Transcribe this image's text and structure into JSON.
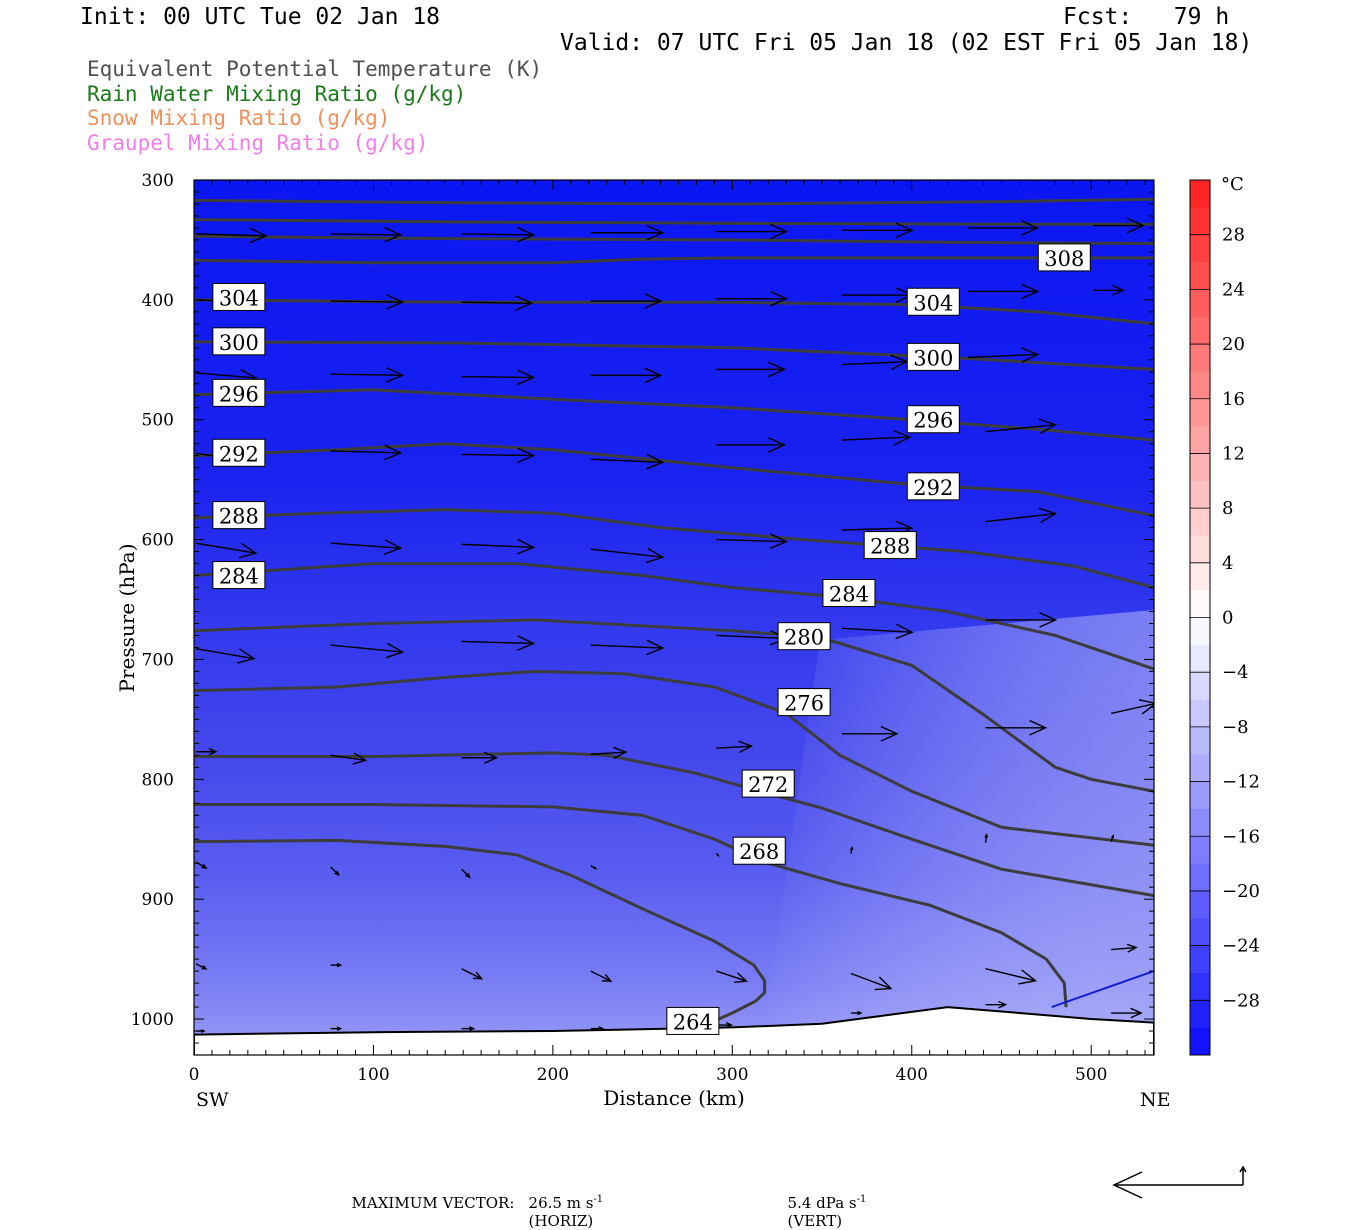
{
  "header": {
    "init": "Init: 00 UTC Tue 02 Jan 18",
    "fcst": "Fcst:   79 h",
    "valid": "Valid: 07 UTC Fri 05 Jan 18 (02 EST Fri 05 Jan 18)"
  },
  "variables": [
    {
      "label": "Equivalent Potential Temperature (K)",
      "color": "#505050"
    },
    {
      "label": "Rain Water Mixing Ratio (g/kg)",
      "color": "#1a7a1a"
    },
    {
      "label": "Snow Mixing Ratio (g/kg)",
      "color": "#f0905a"
    },
    {
      "label": "Graupel Mixing Ratio (g/kg)",
      "color": "#f080e8"
    }
  ],
  "footer": {
    "max_vector_label": "MAXIMUM VECTOR:",
    "horiz_value": "26.5 m s",
    "horiz_exp": "-1",
    "horiz_unit": "(HORIZ)",
    "vert_value": "5.4 dPa s",
    "vert_exp": "-1",
    "vert_unit": "(VERT)"
  },
  "chart_data": {
    "type": "heatmap",
    "xlabel": "Distance (km)",
    "ylabel": "Pressure (hPa)",
    "xlim": [
      0,
      535
    ],
    "ylim": [
      1030,
      300
    ],
    "x_ticks": [
      0,
      100,
      200,
      300,
      400,
      500
    ],
    "y_ticks": [
      300,
      400,
      500,
      600,
      700,
      800,
      900,
      1000
    ],
    "x_endpoint_labels": {
      "left": "SW",
      "right": "NE"
    },
    "colorbar": {
      "unit": "°C",
      "ticks": [
        28,
        24,
        20,
        16,
        12,
        8,
        4,
        0,
        -4,
        -8,
        -12,
        -16,
        -20,
        -24,
        -28
      ],
      "range": [
        -32,
        32
      ]
    },
    "contour_labels": [
      {
        "value": "308",
        "x": 485,
        "p": 365
      },
      {
        "value": "304",
        "x": 25,
        "p": 398
      },
      {
        "value": "304",
        "x": 412,
        "p": 402
      },
      {
        "value": "300",
        "x": 25,
        "p": 435
      },
      {
        "value": "300",
        "x": 412,
        "p": 448
      },
      {
        "value": "296",
        "x": 25,
        "p": 478
      },
      {
        "value": "296",
        "x": 412,
        "p": 500
      },
      {
        "value": "292",
        "x": 25,
        "p": 528
      },
      {
        "value": "292",
        "x": 412,
        "p": 556
      },
      {
        "value": "288",
        "x": 25,
        "p": 580
      },
      {
        "value": "288",
        "x": 388,
        "p": 605
      },
      {
        "value": "284",
        "x": 25,
        "p": 630
      },
      {
        "value": "284",
        "x": 365,
        "p": 645
      },
      {
        "value": "280",
        "x": 340,
        "p": 681
      },
      {
        "value": "276",
        "x": 340,
        "p": 736
      },
      {
        "value": "272",
        "x": 320,
        "p": 804
      },
      {
        "value": "268",
        "x": 315,
        "p": 860
      },
      {
        "value": "264",
        "x": 278,
        "p": 1002
      }
    ],
    "contours": [
      [
        [
          0,
          317
        ],
        [
          150,
          319
        ],
        [
          300,
          320
        ],
        [
          450,
          318
        ],
        [
          535,
          316
        ]
      ],
      [
        [
          0,
          333
        ],
        [
          150,
          335
        ],
        [
          300,
          336
        ],
        [
          450,
          337
        ],
        [
          535,
          337
        ]
      ],
      [
        [
          0,
          347
        ],
        [
          150,
          349
        ],
        [
          300,
          350
        ],
        [
          420,
          352
        ],
        [
          535,
          353
        ]
      ],
      [
        [
          0,
          367
        ],
        [
          100,
          369
        ],
        [
          200,
          369
        ],
        [
          250,
          366
        ],
        [
          300,
          365
        ],
        [
          400,
          365
        ],
        [
          535,
          365
        ]
      ],
      [
        [
          0,
          400
        ],
        [
          150,
          402
        ],
        [
          300,
          402
        ],
        [
          400,
          404
        ],
        [
          470,
          410
        ],
        [
          535,
          420
        ]
      ],
      [
        [
          0,
          435
        ],
        [
          150,
          436
        ],
        [
          300,
          440
        ],
        [
          420,
          448
        ],
        [
          535,
          458
        ]
      ],
      [
        [
          0,
          479
        ],
        [
          100,
          475
        ],
        [
          200,
          483
        ],
        [
          300,
          490
        ],
        [
          400,
          500
        ],
        [
          470,
          508
        ],
        [
          535,
          517
        ]
      ],
      [
        [
          0,
          530
        ],
        [
          80,
          525
        ],
        [
          140,
          520
        ],
        [
          200,
          525
        ],
        [
          300,
          540
        ],
        [
          400,
          554
        ],
        [
          470,
          560
        ],
        [
          535,
          580
        ]
      ],
      [
        [
          0,
          582
        ],
        [
          70,
          578
        ],
        [
          140,
          575
        ],
        [
          200,
          578
        ],
        [
          260,
          590
        ],
        [
          340,
          600
        ],
        [
          430,
          610
        ],
        [
          490,
          622
        ],
        [
          535,
          640
        ]
      ],
      [
        [
          0,
          630
        ],
        [
          100,
          620
        ],
        [
          180,
          620
        ],
        [
          250,
          630
        ],
        [
          300,
          640
        ],
        [
          360,
          648
        ],
        [
          420,
          660
        ],
        [
          480,
          680
        ],
        [
          535,
          708
        ]
      ],
      [
        [
          0,
          676
        ],
        [
          100,
          670
        ],
        [
          190,
          667
        ],
        [
          250,
          672
        ],
        [
          300,
          676
        ],
        [
          350,
          682
        ],
        [
          400,
          705
        ],
        [
          440,
          746
        ],
        [
          480,
          790
        ],
        [
          500,
          800
        ],
        [
          535,
          810
        ]
      ],
      [
        [
          0,
          726
        ],
        [
          80,
          723
        ],
        [
          140,
          715
        ],
        [
          190,
          710
        ],
        [
          240,
          712
        ],
        [
          290,
          723
        ],
        [
          330,
          745
        ],
        [
          360,
          780
        ],
        [
          400,
          810
        ],
        [
          450,
          840
        ],
        [
          535,
          855
        ]
      ],
      [
        [
          0,
          781
        ],
        [
          100,
          781
        ],
        [
          200,
          778
        ],
        [
          230,
          780
        ],
        [
          280,
          795
        ],
        [
          320,
          812
        ],
        [
          350,
          824
        ],
        [
          400,
          850
        ],
        [
          450,
          875
        ],
        [
          535,
          897
        ]
      ],
      [
        [
          0,
          821
        ],
        [
          100,
          821
        ],
        [
          200,
          823
        ],
        [
          250,
          830
        ],
        [
          290,
          850
        ],
        [
          320,
          870
        ],
        [
          360,
          887
        ],
        [
          410,
          905
        ],
        [
          450,
          928
        ],
        [
          475,
          950
        ],
        [
          485,
          970
        ],
        [
          486,
          990
        ]
      ],
      [
        [
          0,
          852
        ],
        [
          80,
          851
        ],
        [
          140,
          856
        ],
        [
          180,
          863
        ],
        [
          210,
          880
        ],
        [
          250,
          908
        ],
        [
          290,
          935
        ],
        [
          312,
          955
        ],
        [
          318,
          968
        ],
        [
          318,
          978
        ],
        [
          313,
          985
        ],
        [
          300,
          995
        ],
        [
          285,
          1005
        ]
      ]
    ],
    "blue_contour": [
      [
        478,
        990
      ],
      [
        535,
        960
      ]
    ],
    "terrain": [
      [
        0,
        1013
      ],
      [
        100,
        1011
      ],
      [
        200,
        1010
      ],
      [
        300,
        1007
      ],
      [
        350,
        1004
      ],
      [
        380,
        998
      ],
      [
        420,
        990
      ],
      [
        460,
        995
      ],
      [
        500,
        1000
      ],
      [
        535,
        1003
      ]
    ],
    "wind_vectors": [
      {
        "x": 0,
        "p": 345,
        "u": 70,
        "v": 2
      },
      {
        "x": 75,
        "p": 345,
        "u": 70,
        "v": 1
      },
      {
        "x": 148,
        "p": 345,
        "u": 72,
        "v": 1
      },
      {
        "x": 220,
        "p": 344,
        "u": 72,
        "v": 0
      },
      {
        "x": 290,
        "p": 343,
        "u": 70,
        "v": 0
      },
      {
        "x": 360,
        "p": 342,
        "u": 70,
        "v": 0
      },
      {
        "x": 430,
        "p": 340,
        "u": 70,
        "v": 0
      },
      {
        "x": 500,
        "p": 338,
        "u": 50,
        "v": 0
      },
      {
        "x": 0,
        "p": 400,
        "u": 65,
        "v": 3
      },
      {
        "x": 75,
        "p": 401,
        "u": 72,
        "v": 1
      },
      {
        "x": 148,
        "p": 402,
        "u": 70,
        "v": 1
      },
      {
        "x": 220,
        "p": 401,
        "u": 70,
        "v": 0
      },
      {
        "x": 290,
        "p": 399,
        "u": 70,
        "v": 0
      },
      {
        "x": 360,
        "p": 396,
        "u": 70,
        "v": 0
      },
      {
        "x": 430,
        "p": 393,
        "u": 70,
        "v": 0
      },
      {
        "x": 500,
        "p": 392,
        "u": 30,
        "v": 0
      },
      {
        "x": 0,
        "p": 461,
        "u": 60,
        "v": 5
      },
      {
        "x": 75,
        "p": 462,
        "u": 72,
        "v": 1
      },
      {
        "x": 148,
        "p": 464,
        "u": 72,
        "v": 1
      },
      {
        "x": 220,
        "p": 463,
        "u": 70,
        "v": 0
      },
      {
        "x": 290,
        "p": 458,
        "u": 68,
        "v": 0
      },
      {
        "x": 360,
        "p": 454,
        "u": 65,
        "v": -3
      },
      {
        "x": 430,
        "p": 448,
        "u": 70,
        "v": -3
      },
      {
        "x": 0,
        "p": 528,
        "u": 55,
        "v": 8
      },
      {
        "x": 75,
        "p": 526,
        "u": 70,
        "v": 2
      },
      {
        "x": 148,
        "p": 529,
        "u": 72,
        "v": 1
      },
      {
        "x": 220,
        "p": 533,
        "u": 72,
        "v": 3
      },
      {
        "x": 290,
        "p": 521,
        "u": 68,
        "v": 0
      },
      {
        "x": 360,
        "p": 517,
        "u": 68,
        "v": -3
      },
      {
        "x": 440,
        "p": 510,
        "u": 70,
        "v": -7
      },
      {
        "x": 0,
        "p": 603,
        "u": 60,
        "v": 10
      },
      {
        "x": 75,
        "p": 603,
        "u": 70,
        "v": 5
      },
      {
        "x": 148,
        "p": 604,
        "u": 72,
        "v": 3
      },
      {
        "x": 220,
        "p": 608,
        "u": 72,
        "v": 8
      },
      {
        "x": 290,
        "p": 600,
        "u": 70,
        "v": 2
      },
      {
        "x": 360,
        "p": 592,
        "u": 70,
        "v": -2
      },
      {
        "x": 440,
        "p": 585,
        "u": 70,
        "v": -8
      },
      {
        "x": 0,
        "p": 691,
        "u": 58,
        "v": 10
      },
      {
        "x": 75,
        "p": 688,
        "u": 72,
        "v": 7
      },
      {
        "x": 148,
        "p": 685,
        "u": 72,
        "v": 2
      },
      {
        "x": 220,
        "p": 688,
        "u": 72,
        "v": 3
      },
      {
        "x": 290,
        "p": 680,
        "u": 70,
        "v": 3
      },
      {
        "x": 360,
        "p": 674,
        "u": 70,
        "v": 4
      },
      {
        "x": 440,
        "p": 667,
        "u": 70,
        "v": 0
      },
      {
        "x": 0,
        "p": 777,
        "u": 20,
        "v": 0
      },
      {
        "x": 75,
        "p": 780,
        "u": 35,
        "v": 5
      },
      {
        "x": 148,
        "p": 782,
        "u": 35,
        "v": 0
      },
      {
        "x": 220,
        "p": 779,
        "u": 35,
        "v": -2
      },
      {
        "x": 290,
        "p": 774,
        "u": 35,
        "v": -2
      },
      {
        "x": 360,
        "p": 762,
        "u": 55,
        "v": 0
      },
      {
        "x": 440,
        "p": 757,
        "u": 60,
        "v": 0
      },
      {
        "x": 510,
        "p": 745,
        "u": 45,
        "v": -10
      },
      {
        "x": 0,
        "p": 869,
        "u": 10,
        "v": 6
      },
      {
        "x": 75,
        "p": 873,
        "u": 8,
        "v": 8
      },
      {
        "x": 148,
        "p": 875,
        "u": 8,
        "v": 8
      },
      {
        "x": 220,
        "p": 872,
        "u": 5,
        "v": 3
      },
      {
        "x": 290,
        "p": 862,
        "u": 2,
        "v": 2
      },
      {
        "x": 365,
        "p": 862,
        "u": 1,
        "v": -6
      },
      {
        "x": 440,
        "p": 853,
        "u": 1,
        "v": -8
      },
      {
        "x": 510,
        "p": 852,
        "u": 2,
        "v": -6
      },
      {
        "x": 0,
        "p": 954,
        "u": 10,
        "v": 5
      },
      {
        "x": 75,
        "p": 955,
        "u": 10,
        "v": 0
      },
      {
        "x": 148,
        "p": 958,
        "u": 20,
        "v": 10
      },
      {
        "x": 220,
        "p": 960,
        "u": 20,
        "v": 10
      },
      {
        "x": 290,
        "p": 960,
        "u": 30,
        "v": 10
      },
      {
        "x": 365,
        "p": 962,
        "u": 40,
        "v": 15
      },
      {
        "x": 440,
        "p": 958,
        "u": 50,
        "v": 12
      },
      {
        "x": 510,
        "p": 942,
        "u": 25,
        "v": -2
      },
      {
        "x": 0,
        "p": 1010,
        "u": 8,
        "v": 0
      },
      {
        "x": 75,
        "p": 1008,
        "u": 10,
        "v": 0
      },
      {
        "x": 148,
        "p": 1008,
        "u": 12,
        "v": 0
      },
      {
        "x": 220,
        "p": 1008,
        "u": 12,
        "v": 0
      },
      {
        "x": 290,
        "p": 1005,
        "u": 15,
        "v": 0
      },
      {
        "x": 365,
        "p": 995,
        "u": 10,
        "v": 0
      },
      {
        "x": 440,
        "p": 988,
        "u": 20,
        "v": 0
      },
      {
        "x": 510,
        "p": 995,
        "u": 30,
        "v": 0
      }
    ]
  }
}
